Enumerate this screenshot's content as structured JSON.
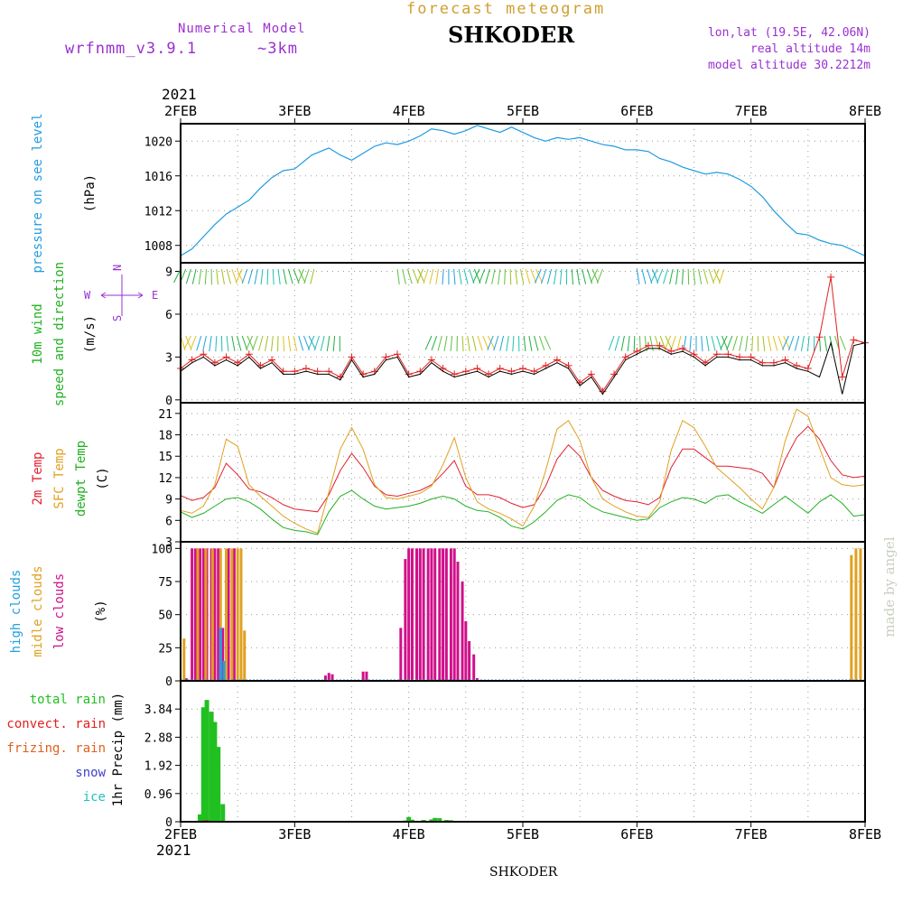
{
  "header": {
    "title": "forecast meteogram",
    "station": "SHKODER",
    "model_label": "Numerical Model",
    "model_name": "wrfnmm_v3.9.1",
    "resolution": "~3km",
    "coords": "lon,lat (19.5E, 42.06N)",
    "real_altitude": "real altitude 14m",
    "model_altitude": "model altitude   30.2212m",
    "year": "2021",
    "footer_station": "SHKODER",
    "credit": "made by angel"
  },
  "colors": {
    "pressure": "#1e9be0",
    "wind_speed": "#e02020",
    "wind_gust": "#000000",
    "temp_2m": "#e02030",
    "temp_sfc": "#e0a020",
    "dewpoint": "#20b020",
    "high_clouds": "#20a0e0",
    "middle_clouds": "#e0a020",
    "low_clouds": "#d0108a",
    "total_rain": "#20c020",
    "convective_rain": "#e02020",
    "freezing_rain": "#e06020",
    "snow": "#4040d0",
    "ice": "#20c0c0",
    "label_purple": "#9a30d0",
    "title_gold": "#d0a030"
  },
  "chart_data": [
    {
      "type": "line",
      "panel": "pressure",
      "labels": [
        "pressure on see level",
        "(hPa)"
      ],
      "ylim": [
        1006,
        1022
      ],
      "yticks": [
        "1008",
        "1012",
        "1016",
        "1020"
      ],
      "x_ticks": [
        "2FEB",
        "3FEB",
        "4FEB",
        "5FEB",
        "6FEB",
        "7FEB",
        "8FEB"
      ],
      "grid": true,
      "series": [
        {
          "name": "pressure on see level",
          "x": [
            0,
            0.1,
            0.2,
            0.3,
            0.4,
            0.5,
            0.6,
            0.7,
            0.8,
            0.9,
            1.0,
            1.15,
            1.3,
            1.4,
            1.5,
            1.6,
            1.7,
            1.8,
            1.9,
            2.0,
            2.1,
            2.2,
            2.3,
            2.4,
            2.5,
            2.6,
            2.7,
            2.8,
            2.9,
            3.0,
            3.1,
            3.2,
            3.3,
            3.4,
            3.5,
            3.6,
            3.7,
            3.8,
            3.9,
            4.0,
            4.1,
            4.2,
            4.3,
            4.4,
            4.5,
            4.6,
            4.7,
            4.8,
            4.9,
            5.0,
            5.1,
            5.2,
            5.3,
            5.4,
            5.5,
            5.6,
            5.7,
            5.8,
            5.9,
            6.0
          ],
          "y": [
            1006.8,
            1007.6,
            1009.0,
            1010.4,
            1011.6,
            1012.4,
            1013.2,
            1014.6,
            1015.8,
            1016.6,
            1016.8,
            1018.4,
            1019.2,
            1018.4,
            1017.8,
            1018.6,
            1019.4,
            1019.8,
            1019.6,
            1020.0,
            1020.6,
            1021.4,
            1021.2,
            1020.8,
            1021.2,
            1021.8,
            1021.4,
            1021.0,
            1021.6,
            1021.0,
            1020.4,
            1020.0,
            1020.4,
            1020.2,
            1020.4,
            1020.0,
            1019.6,
            1019.4,
            1019.0,
            1019.0,
            1018.8,
            1018.0,
            1017.6,
            1017.0,
            1016.6,
            1016.2,
            1016.4,
            1016.2,
            1015.6,
            1014.8,
            1013.6,
            1012.0,
            1010.6,
            1009.4,
            1009.2,
            1008.6,
            1008.2,
            1008.0,
            1007.4,
            1006.8
          ]
        }
      ]
    },
    {
      "type": "line",
      "panel": "wind",
      "labels": [
        "10m wind",
        "speed and direction",
        "(m/s)"
      ],
      "direction_legend": {
        "n": "N",
        "w": "W",
        "e": "E",
        "s": "S"
      },
      "ylim": [
        -0.2,
        9.6
      ],
      "yticks": [
        "0",
        "3",
        "6",
        "9"
      ],
      "grid": true,
      "series": [
        {
          "name": "wind speed",
          "x": [
            0,
            0.1,
            0.2,
            0.3,
            0.4,
            0.5,
            0.6,
            0.7,
            0.8,
            0.9,
            1.0,
            1.1,
            1.2,
            1.3,
            1.4,
            1.5,
            1.6,
            1.7,
            1.8,
            1.9,
            2.0,
            2.1,
            2.2,
            2.3,
            2.4,
            2.5,
            2.6,
            2.7,
            2.8,
            2.9,
            3.0,
            3.1,
            3.2,
            3.3,
            3.4,
            3.5,
            3.6,
            3.7,
            3.8,
            3.9,
            4.0,
            4.1,
            4.2,
            4.3,
            4.4,
            4.5,
            4.6,
            4.7,
            4.8,
            4.9,
            5.0,
            5.1,
            5.2,
            5.3,
            5.4,
            5.5,
            5.6,
            5.7,
            5.8,
            5.9,
            6.0
          ],
          "y": [
            2.2,
            2.8,
            3.2,
            2.6,
            3.0,
            2.6,
            3.2,
            2.4,
            2.8,
            2.0,
            2.0,
            2.2,
            2.0,
            2.0,
            1.6,
            3.0,
            1.8,
            2.0,
            3.0,
            3.2,
            1.8,
            2.0,
            2.8,
            2.2,
            1.8,
            2.0,
            2.2,
            1.8,
            2.2,
            2.0,
            2.2,
            2.0,
            2.4,
            2.8,
            2.4,
            1.2,
            1.8,
            0.6,
            1.8,
            3.0,
            3.4,
            3.8,
            3.8,
            3.4,
            3.6,
            3.2,
            2.6,
            3.2,
            3.2,
            3.0,
            3.0,
            2.6,
            2.6,
            2.8,
            2.4,
            2.2,
            4.4,
            8.6,
            1.6,
            4.2,
            4.0
          ]
        },
        {
          "name": "wind gust",
          "x": [
            0,
            0.1,
            0.2,
            0.3,
            0.4,
            0.5,
            0.6,
            0.7,
            0.8,
            0.9,
            1.0,
            1.1,
            1.2,
            1.3,
            1.4,
            1.5,
            1.6,
            1.7,
            1.8,
            1.9,
            2.0,
            2.1,
            2.2,
            2.3,
            2.4,
            2.5,
            2.6,
            2.7,
            2.8,
            2.9,
            3.0,
            3.1,
            3.2,
            3.3,
            3.4,
            3.5,
            3.6,
            3.7,
            3.8,
            3.9,
            4.0,
            4.1,
            4.2,
            4.3,
            4.4,
            4.5,
            4.6,
            4.7,
            4.8,
            4.9,
            5.0,
            5.1,
            5.2,
            5.3,
            5.4,
            5.5,
            5.6,
            5.7,
            5.8,
            5.9,
            6.0
          ],
          "y": [
            2.0,
            2.6,
            3.0,
            2.4,
            2.8,
            2.4,
            3.0,
            2.2,
            2.6,
            1.8,
            1.8,
            2.0,
            1.8,
            1.8,
            1.4,
            2.8,
            1.6,
            1.8,
            2.8,
            3.0,
            1.6,
            1.8,
            2.6,
            2.0,
            1.6,
            1.8,
            2.0,
            1.6,
            2.0,
            1.8,
            2.0,
            1.8,
            2.2,
            2.6,
            2.2,
            1.0,
            1.6,
            0.4,
            1.6,
            2.8,
            3.2,
            3.6,
            3.6,
            3.2,
            3.4,
            3.0,
            2.4,
            3.0,
            3.0,
            2.8,
            2.8,
            2.4,
            2.4,
            2.6,
            2.2,
            2.0,
            1.6,
            4.0,
            0.4,
            3.8,
            4.0
          ]
        }
      ]
    },
    {
      "type": "line",
      "panel": "temperature",
      "labels": [
        "2m Temp",
        "SFC Temp",
        "dewpt Temp",
        "(C)"
      ],
      "ylim": [
        3,
        22.5
      ],
      "yticks": [
        "3",
        "6",
        "9",
        "12",
        "15",
        "18",
        "21"
      ],
      "grid": true,
      "series": [
        {
          "name": "2m Temp",
          "x": [
            0,
            0.1,
            0.2,
            0.3,
            0.4,
            0.5,
            0.6,
            0.7,
            0.8,
            0.9,
            1.0,
            1.1,
            1.2,
            1.3,
            1.4,
            1.5,
            1.6,
            1.7,
            1.8,
            1.9,
            2.0,
            2.1,
            2.2,
            2.3,
            2.4,
            2.5,
            2.6,
            2.7,
            2.8,
            2.9,
            3.0,
            3.1,
            3.2,
            3.3,
            3.4,
            3.5,
            3.6,
            3.7,
            3.8,
            3.9,
            4.0,
            4.1,
            4.2,
            4.3,
            4.4,
            4.5,
            4.6,
            4.7,
            4.8,
            4.9,
            5.0,
            5.1,
            5.2,
            5.3,
            5.4,
            5.5,
            5.6,
            5.7,
            5.8,
            5.9,
            6.0
          ],
          "y": [
            9.5,
            8.8,
            9.2,
            10.6,
            14.0,
            12.4,
            10.4,
            10.0,
            9.2,
            8.2,
            7.6,
            7.4,
            7.2,
            9.6,
            13.0,
            15.4,
            13.4,
            10.8,
            9.6,
            9.4,
            9.8,
            10.2,
            11.0,
            12.6,
            14.4,
            10.8,
            9.6,
            9.6,
            9.2,
            8.4,
            7.8,
            8.2,
            10.8,
            14.6,
            16.6,
            15.0,
            12.0,
            10.2,
            9.4,
            8.8,
            8.6,
            8.2,
            9.2,
            13.4,
            16.0,
            16.0,
            14.8,
            13.6,
            13.6,
            13.4,
            13.2,
            12.6,
            10.6,
            14.6,
            17.6,
            19.2,
            17.4,
            14.4,
            12.4,
            12.0,
            12.2
          ]
        },
        {
          "name": "SFC Temp",
          "x": [
            0,
            0.1,
            0.2,
            0.3,
            0.4,
            0.5,
            0.6,
            0.7,
            0.8,
            0.9,
            1.0,
            1.1,
            1.2,
            1.3,
            1.4,
            1.5,
            1.6,
            1.7,
            1.8,
            1.9,
            2.0,
            2.1,
            2.2,
            2.3,
            2.4,
            2.5,
            2.6,
            2.7,
            2.8,
            2.9,
            3.0,
            3.1,
            3.2,
            3.3,
            3.4,
            3.5,
            3.6,
            3.7,
            3.8,
            3.9,
            4.0,
            4.1,
            4.2,
            4.3,
            4.4,
            4.5,
            4.6,
            4.7,
            4.8,
            4.9,
            5.0,
            5.1,
            5.2,
            5.3,
            5.4,
            5.5,
            5.6,
            5.7,
            5.8,
            5.9,
            6.0
          ],
          "y": [
            7.4,
            7.0,
            8.0,
            11.0,
            17.4,
            16.4,
            11.0,
            9.4,
            8.0,
            6.6,
            5.6,
            4.8,
            4.2,
            10.0,
            16.0,
            19.0,
            16.0,
            11.0,
            9.2,
            9.0,
            9.4,
            9.8,
            10.8,
            13.8,
            17.6,
            12.0,
            8.6,
            7.6,
            7.0,
            6.2,
            5.2,
            8.0,
            13.0,
            18.8,
            20.0,
            17.2,
            12.0,
            9.0,
            8.0,
            7.2,
            6.6,
            6.4,
            8.6,
            15.8,
            20.0,
            19.0,
            16.4,
            13.4,
            12.0,
            10.6,
            9.0,
            7.6,
            10.6,
            17.2,
            21.6,
            20.6,
            16.2,
            12.0,
            11.0,
            10.8,
            11.0
          ]
        },
        {
          "name": "dewpt Temp",
          "x": [
            0,
            0.1,
            0.2,
            0.3,
            0.4,
            0.5,
            0.6,
            0.7,
            0.8,
            0.9,
            1.0,
            1.1,
            1.2,
            1.3,
            1.4,
            1.5,
            1.6,
            1.7,
            1.8,
            1.9,
            2.0,
            2.1,
            2.2,
            2.3,
            2.4,
            2.5,
            2.6,
            2.7,
            2.8,
            2.9,
            3.0,
            3.1,
            3.2,
            3.3,
            3.4,
            3.5,
            3.6,
            3.7,
            3.8,
            3.9,
            4.0,
            4.1,
            4.2,
            4.3,
            4.4,
            4.5,
            4.6,
            4.7,
            4.8,
            4.9,
            5.0,
            5.1,
            5.2,
            5.3,
            5.4,
            5.5,
            5.6,
            5.7,
            5.8,
            5.9,
            6.0
          ],
          "y": [
            7.2,
            6.4,
            7.0,
            8.0,
            9.0,
            9.2,
            8.6,
            7.6,
            6.2,
            5.0,
            4.6,
            4.4,
            4.0,
            7.2,
            9.4,
            10.2,
            9.0,
            8.0,
            7.6,
            7.8,
            8.0,
            8.4,
            9.0,
            9.4,
            9.0,
            8.0,
            7.4,
            7.2,
            6.4,
            5.2,
            4.8,
            5.8,
            7.2,
            8.8,
            9.6,
            9.2,
            8.0,
            7.2,
            6.8,
            6.4,
            6.0,
            6.2,
            7.8,
            8.6,
            9.2,
            9.0,
            8.4,
            9.4,
            9.6,
            8.6,
            7.8,
            7.0,
            8.2,
            9.4,
            8.2,
            7.0,
            8.6,
            9.6,
            8.4,
            6.6,
            6.8
          ]
        }
      ]
    },
    {
      "type": "bar",
      "panel": "clouds",
      "labels": [
        "high  clouds",
        "midle clouds",
        "low   clouds",
        "(%)"
      ],
      "ylim": [
        0,
        105
      ],
      "yticks": [
        "0",
        "25",
        "50",
        "75",
        "100"
      ],
      "grid": true,
      "series": [
        {
          "name": "low clouds",
          "x": [
            0.05,
            0.1,
            0.13,
            0.17,
            0.2,
            0.23,
            0.27,
            0.3,
            0.33,
            0.37,
            0.42,
            0.47,
            1.27,
            1.3,
            1.33,
            1.6,
            1.63,
            1.93,
            1.97,
            2.0,
            2.03,
            2.07,
            2.1,
            2.13,
            2.17,
            2.2,
            2.23,
            2.27,
            2.3,
            2.33,
            2.37,
            2.4,
            2.43,
            2.47,
            2.5,
            2.53,
            2.57,
            2.6,
            4.0,
            5.3
          ],
          "y": [
            2,
            100,
            100,
            100,
            100,
            100,
            100,
            100,
            100,
            40,
            100,
            100,
            4,
            6,
            5,
            7,
            7,
            40,
            92,
            100,
            100,
            100,
            100,
            100,
            100,
            100,
            100,
            100,
            100,
            100,
            100,
            100,
            90,
            75,
            45,
            30,
            20,
            2,
            1,
            1
          ]
        },
        {
          "name": "midle clouds",
          "x": [
            0.03,
            0.15,
            0.22,
            0.28,
            0.35,
            0.4,
            0.45,
            0.5,
            0.53,
            0.56,
            5.88,
            5.92,
            5.96
          ],
          "y": [
            32,
            100,
            100,
            100,
            100,
            100,
            100,
            100,
            100,
            38,
            95,
            100,
            100
          ]
        },
        {
          "name": "high clouds",
          "x": [
            0.35,
            0.38,
            3.9
          ],
          "y": [
            40,
            15,
            1
          ]
        }
      ]
    },
    {
      "type": "bar",
      "panel": "precipitation",
      "labels": [
        "1hr Precip (mm)"
      ],
      "legend": [
        "total      rain",
        "convect. rain",
        "frizing. rain",
        "snow",
        "ice"
      ],
      "ylim": [
        0,
        4.8
      ],
      "yticks": [
        "0",
        "0.96",
        "1.92",
        "2.88",
        "3.84"
      ],
      "x_ticks": [
        "2FEB",
        "3FEB",
        "4FEB",
        "5FEB",
        "6FEB",
        "7FEB",
        "8FEB"
      ],
      "grid": true,
      "series": [
        {
          "name": "total rain",
          "x": [
            0.17,
            0.2,
            0.23,
            0.27,
            0.3,
            0.33,
            0.37,
            1.97,
            2.0,
            2.03,
            2.13,
            2.2,
            2.23,
            2.27,
            2.33,
            2.37,
            2.43,
            2.47
          ],
          "y": [
            0.25,
            3.9,
            4.15,
            3.75,
            3.4,
            2.55,
            0.6,
            0.04,
            0.16,
            0.07,
            0.06,
            0.08,
            0.13,
            0.12,
            0.06,
            0.05,
            0.03,
            0.02
          ]
        },
        {
          "name": "convect. rain",
          "x": [
            0.2,
            0.23,
            0.27
          ],
          "y": [
            0.04,
            0.05,
            0.03
          ]
        }
      ]
    }
  ]
}
